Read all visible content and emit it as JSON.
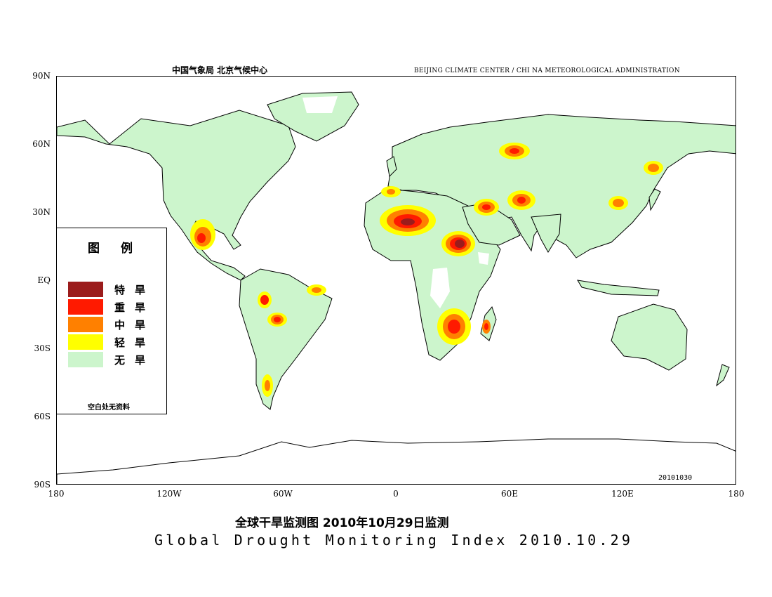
{
  "header": {
    "cn_agency": "中国气象局  北京气候中心",
    "en_agency": "BEIJING CLIMATE CENTER / CHI NA METEOROLOGICAL ADMINISTRATION"
  },
  "axes": {
    "lat_ticks": [
      "90N",
      "60N",
      "30N",
      "EQ",
      "30S",
      "60S",
      "90S"
    ],
    "lon_ticks": [
      "180",
      "120W",
      "60W",
      "0",
      "60E",
      "120E",
      "180"
    ]
  },
  "legend": {
    "title": "图例",
    "items": [
      {
        "label": "特旱",
        "color": "#9b1c1c"
      },
      {
        "label": "重旱",
        "color": "#ff1a00"
      },
      {
        "label": "中旱",
        "color": "#ff8000"
      },
      {
        "label": "轻旱",
        "color": "#ffff00"
      },
      {
        "label": "无旱",
        "color": "#ccf5cc"
      }
    ],
    "note": "空白处无资料"
  },
  "stamp": "20101030",
  "caption": {
    "cn": "全球干旱监测图    2010年10月29日监测",
    "en": "Global Drought Monitoring Index  2010.10.29"
  },
  "colors": {
    "no_drought": "#ccf5cc",
    "light": "#ffff00",
    "moderate": "#ff8000",
    "severe": "#ff1a00",
    "extreme": "#9b1c1c",
    "coast": "#000000"
  }
}
